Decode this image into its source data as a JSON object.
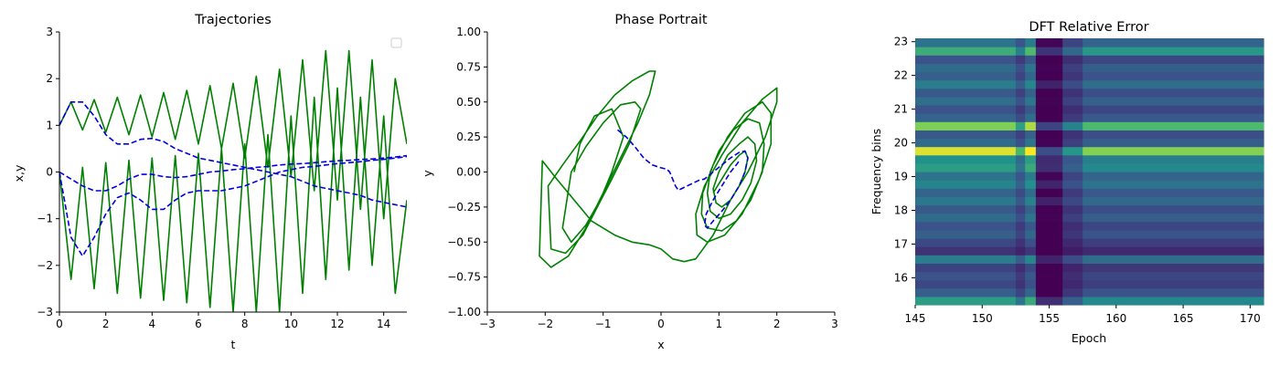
{
  "chart_data": [
    {
      "type": "line",
      "title": "Trajectories",
      "xlabel": "t",
      "ylabel": "x,y",
      "xlim": [
        0,
        15
      ],
      "ylim": [
        -3,
        3
      ],
      "xticks": [
        "0",
        "2",
        "4",
        "6",
        "8",
        "10",
        "12",
        "14"
      ],
      "yticks": [
        "−3",
        "−2",
        "−1",
        "0",
        "1",
        "2",
        "3"
      ],
      "grid": false,
      "legend": "top-right (empty)",
      "colors": {
        "true": "#008000",
        "predicted": "#0000dd"
      },
      "series": [
        {
          "style": "solid",
          "color": "#008000",
          "x": [
            0,
            0.5,
            1,
            1.5,
            2,
            2.5,
            3,
            3.5,
            4,
            4.5,
            5,
            5.5,
            6,
            6.5,
            7,
            7.5,
            8,
            8.5,
            9,
            9.5,
            10,
            10.5,
            11,
            11.5,
            12,
            12.5,
            13,
            13.5,
            14,
            14.5,
            15
          ],
          "y": [
            1.0,
            1.5,
            0.9,
            1.55,
            0.85,
            1.6,
            0.8,
            1.65,
            0.75,
            1.7,
            0.7,
            1.75,
            0.6,
            1.85,
            0.5,
            1.9,
            0.3,
            2.05,
            0.1,
            2.2,
            -0.1,
            2.4,
            -0.4,
            2.6,
            -0.6,
            2.6,
            -0.8,
            2.4,
            -1.0,
            2.0,
            0.6
          ]
        },
        {
          "style": "solid",
          "color": "#008000",
          "x": [
            0,
            0.5,
            1,
            1.5,
            2,
            2.5,
            3,
            3.5,
            4,
            4.5,
            5,
            5.5,
            6,
            6.5,
            7,
            7.5,
            8,
            8.5,
            9,
            9.5,
            10,
            10.5,
            11,
            11.5,
            12,
            12.5,
            13,
            13.5,
            14,
            14.5,
            15
          ],
          "y": [
            0.0,
            -2.3,
            0.1,
            -2.5,
            0.2,
            -2.6,
            0.25,
            -2.7,
            0.3,
            -2.75,
            0.35,
            -2.8,
            0.4,
            -2.9,
            0.5,
            -3.0,
            0.6,
            -3.0,
            0.8,
            -3.0,
            1.2,
            -2.6,
            1.6,
            -2.3,
            1.8,
            -2.1,
            1.6,
            -2.0,
            1.2,
            -2.6,
            -0.6
          ]
        },
        {
          "style": "dashed",
          "color": "#0000dd",
          "x": [
            0,
            0.5,
            1,
            1.5,
            2,
            2.5,
            3,
            3.5,
            4,
            4.5,
            5,
            5.5,
            6,
            6.5,
            7,
            7.5,
            8,
            8.5,
            9,
            9.5,
            10,
            10.5,
            11,
            11.5,
            12,
            12.5,
            13,
            13.5,
            14,
            14.5,
            15
          ],
          "y": [
            1.0,
            1.5,
            1.5,
            1.2,
            0.8,
            0.6,
            0.6,
            0.7,
            0.72,
            0.65,
            0.5,
            0.4,
            0.3,
            0.25,
            0.2,
            0.15,
            0.1,
            0.05,
            0.0,
            -0.05,
            -0.1,
            -0.2,
            -0.3,
            -0.35,
            -0.4,
            -0.45,
            -0.5,
            -0.6,
            -0.65,
            -0.7,
            -0.75
          ]
        },
        {
          "style": "dashed",
          "color": "#0000dd",
          "x": [
            0,
            0.5,
            1,
            1.5,
            2,
            2.5,
            3,
            3.5,
            4,
            4.5,
            5,
            5.5,
            6,
            6.5,
            7,
            7.5,
            8,
            8.5,
            9,
            9.5,
            10,
            10.5,
            11,
            11.5,
            12,
            12.5,
            13,
            13.5,
            14,
            14.5,
            15
          ],
          "y": [
            0.0,
            -1.4,
            -1.8,
            -1.4,
            -0.9,
            -0.55,
            -0.45,
            -0.6,
            -0.8,
            -0.8,
            -0.6,
            -0.45,
            -0.4,
            -0.4,
            -0.4,
            -0.35,
            -0.3,
            -0.2,
            -0.1,
            0.0,
            0.05,
            0.1,
            0.12,
            0.15,
            0.18,
            0.2,
            0.22,
            0.25,
            0.27,
            0.3,
            0.33
          ]
        },
        {
          "style": "dashed",
          "color": "#0000dd",
          "x": [
            0,
            0.5,
            1,
            1.5,
            2,
            2.5,
            3,
            3.5,
            4,
            4.5,
            5,
            5.5,
            6,
            6.5,
            7,
            7.5,
            8,
            8.5,
            9,
            9.5,
            10,
            10.5,
            11,
            11.5,
            12,
            12.5,
            13,
            13.5,
            14,
            14.5,
            15
          ],
          "y": [
            0.0,
            -0.15,
            -0.3,
            -0.4,
            -0.4,
            -0.3,
            -0.15,
            -0.05,
            -0.05,
            -0.1,
            -0.12,
            -0.1,
            -0.05,
            0.0,
            0.02,
            0.05,
            0.07,
            0.1,
            0.12,
            0.15,
            0.17,
            0.18,
            0.2,
            0.22,
            0.24,
            0.25,
            0.27,
            0.28,
            0.3,
            0.32,
            0.35
          ]
        }
      ]
    },
    {
      "type": "line",
      "title": "Phase Portrait",
      "xlabel": "x",
      "ylabel": "y",
      "xlim": [
        -3,
        3
      ],
      "ylim": [
        -1,
        1
      ],
      "xticks": [
        "−3",
        "−2",
        "−1",
        "0",
        "1",
        "2",
        "3"
      ],
      "yticks": [
        "−1.00",
        "−0.75",
        "−0.50",
        "−0.25",
        "0.00",
        "0.25",
        "0.50",
        "0.75",
        "1.00"
      ],
      "grid": false,
      "series": [
        {
          "style": "solid",
          "color": "#008000",
          "x": [
            0.9,
            1.05,
            1.2,
            1.35,
            1.45,
            1.5,
            1.45,
            1.35,
            1.2,
            1.05,
            0.95,
            0.9,
            1.0,
            1.15,
            1.35,
            1.5,
            1.62,
            1.65,
            1.55,
            1.4,
            1.2,
            1.0,
            0.85,
            0.8,
            0.85,
            1.0,
            1.25,
            1.5,
            1.7,
            1.78,
            1.75,
            1.55,
            1.3,
            1.05,
            0.8,
            0.7,
            0.72,
            0.9,
            1.15,
            1.45,
            1.75,
            1.9,
            1.9,
            1.7,
            1.4,
            1.1,
            0.8,
            0.62,
            0.6,
            0.75,
            1.05,
            1.4,
            1.75,
            2.0,
            2.0,
            1.8,
            1.5,
            1.2,
            0.9,
            0.6,
            0.4,
            0.2,
            0.0,
            -0.2,
            -0.5,
            -0.8,
            -1.2,
            -1.5,
            -1.8,
            -2.05,
            -2.1,
            -1.9,
            -1.6,
            -1.3,
            -1.0,
            -0.7,
            -0.4,
            -0.2,
            -0.1,
            -0.2,
            -0.5,
            -0.8,
            -1.1,
            -1.4,
            -1.7,
            -1.95,
            -1.9,
            -1.65,
            -1.35,
            -1.1,
            -0.85,
            -0.55,
            -0.35,
            -0.45,
            -0.7,
            -1.0,
            -1.3,
            -1.55,
            -1.7,
            -1.55,
            -1.3,
            -1.05,
            -0.85,
            -0.65,
            -0.85,
            -1.15,
            -1.4,
            -1.5
          ],
          "y": [
            -0.15,
            -0.05,
            0.05,
            0.12,
            0.15,
            0.1,
            0.0,
            -0.1,
            -0.2,
            -0.25,
            -0.22,
            -0.12,
            0.0,
            0.12,
            0.2,
            0.25,
            0.2,
            0.08,
            -0.08,
            -0.2,
            -0.3,
            -0.33,
            -0.28,
            -0.15,
            0.0,
            0.15,
            0.3,
            0.38,
            0.35,
            0.2,
            0.0,
            -0.2,
            -0.35,
            -0.42,
            -0.4,
            -0.3,
            -0.15,
            0.05,
            0.25,
            0.42,
            0.5,
            0.42,
            0.2,
            -0.05,
            -0.3,
            -0.45,
            -0.5,
            -0.45,
            -0.3,
            -0.1,
            0.12,
            0.35,
            0.52,
            0.6,
            0.5,
            0.25,
            0.0,
            -0.2,
            -0.45,
            -0.62,
            -0.64,
            -0.62,
            -0.55,
            -0.52,
            -0.5,
            -0.45,
            -0.35,
            -0.2,
            -0.05,
            0.08,
            -0.6,
            -0.68,
            -0.6,
            -0.4,
            -0.15,
            0.1,
            0.35,
            0.55,
            0.72,
            0.72,
            0.65,
            0.55,
            0.4,
            0.22,
            0.05,
            -0.1,
            -0.55,
            -0.58,
            -0.45,
            -0.25,
            -0.05,
            0.2,
            0.45,
            0.5,
            0.48,
            0.35,
            0.18,
            0.0,
            -0.4,
            -0.5,
            -0.38,
            -0.2,
            0.0,
            0.25,
            0.45,
            0.4,
            0.2,
            0.0
          ]
        },
        {
          "style": "dashed",
          "color": "#0000dd",
          "x": [
            -0.75,
            -0.6,
            -0.45,
            -0.3,
            -0.15,
            0.0,
            0.1,
            0.15,
            0.2,
            0.25,
            0.3,
            0.35,
            0.45,
            0.55,
            0.65,
            0.75,
            0.9,
            1.05,
            1.2,
            1.35,
            1.45,
            1.5,
            1.45,
            1.35,
            1.2,
            1.05,
            0.9,
            0.8,
            0.75,
            0.78,
            0.9,
            1.05,
            1.2,
            1.3,
            1.35
          ],
          "y": [
            0.3,
            0.25,
            0.18,
            0.1,
            0.05,
            0.03,
            0.02,
            0.0,
            -0.05,
            -0.1,
            -0.13,
            -0.12,
            -0.1,
            -0.08,
            -0.06,
            -0.05,
            0.0,
            0.05,
            0.1,
            0.14,
            0.15,
            0.1,
            0.0,
            -0.1,
            -0.2,
            -0.28,
            -0.35,
            -0.4,
            -0.38,
            -0.3,
            -0.2,
            -0.1,
            0.0,
            0.05,
            0.08
          ]
        }
      ]
    },
    {
      "type": "heatmap",
      "title": "DFT Relative Error",
      "xlabel": "Epoch",
      "ylabel": "Frequency bins",
      "xlim": [
        145,
        171
      ],
      "ylim": [
        15.2,
        23.1
      ],
      "xticks": [
        "145",
        "150",
        "155",
        "160",
        "165",
        "170"
      ],
      "yticks": [
        "16",
        "17",
        "18",
        "19",
        "20",
        "21",
        "22",
        "23"
      ],
      "colormap": "viridis",
      "rows": 32,
      "x_breakpoints": [
        145,
        152.5,
        153.2,
        154.0,
        156.0,
        157.5,
        171
      ],
      "row_values": [
        0.55,
        0.3,
        0.22,
        0.25,
        0.2,
        0.42,
        0.15,
        0.22,
        0.3,
        0.25,
        0.35,
        0.28,
        0.4,
        0.32,
        0.45,
        0.38,
        0.55,
        0.5,
        0.95,
        0.35,
        0.28,
        0.8,
        0.32,
        0.25,
        0.36,
        0.28,
        0.42,
        0.3,
        0.35,
        0.25,
        0.62,
        0.38
      ],
      "column_factors": [
        1.0,
        0.7,
        1.1,
        0.25,
        0.55,
        0.85,
        1.0
      ]
    }
  ]
}
